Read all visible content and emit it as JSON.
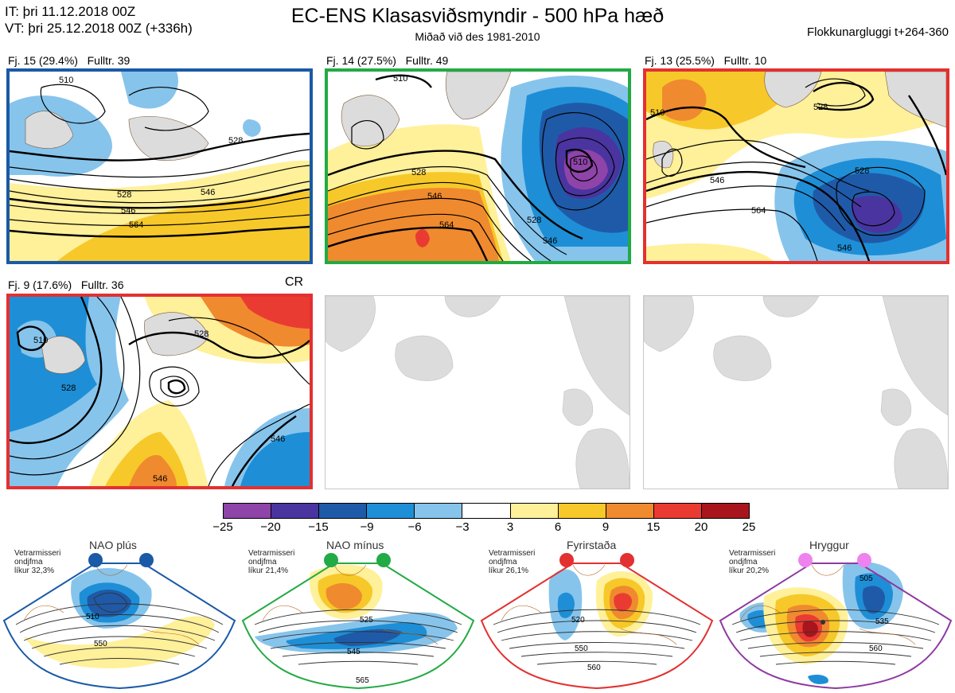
{
  "header": {
    "init_line": "IT: þri 11.12.2018 00Z",
    "valid_line": "VT: þri 25.12.2018 00Z  (+336h)",
    "title": "EC-ENS Klasasviðsmyndir - 500 hPa hæð",
    "subtitle": "Miðað við des 1981-2010",
    "window": "Flokkunargluggi t+264-360"
  },
  "panels": [
    {
      "label": "Fj. 15 (29.4%)",
      "rep": "Fulltr. 39",
      "border": "#1a5aa6",
      "contours": [
        "510",
        "528",
        "546",
        "564",
        "528",
        "546"
      ]
    },
    {
      "label": "Fj. 14 (27.5%)",
      "rep": "Fulltr. 49",
      "border": "#22aa44",
      "contours": [
        "510",
        "528",
        "546",
        "564",
        "510",
        "528",
        "546"
      ]
    },
    {
      "label": "Fj. 13 (25.5%)",
      "rep": "Fulltr. 10",
      "border": "#e33030",
      "contours": [
        "510",
        "528",
        "546",
        "564",
        "528",
        "546"
      ]
    },
    {
      "label": "Fj. 9 (17.6%)",
      "rep": "Fulltr. 36",
      "border": "#e33030",
      "tag": "CR",
      "contours": [
        "510",
        "528",
        "528",
        "546",
        "546"
      ]
    }
  ],
  "colorbar": {
    "ticks": [
      "−25",
      "−20",
      "−15",
      "−9",
      "−6",
      "−3",
      "3",
      "6",
      "9",
      "15",
      "20",
      "25"
    ],
    "colors": [
      "#8e44a8",
      "#4a34a0",
      "#1f5aa8",
      "#1e8fd6",
      "#86c4ec",
      "#ffffff",
      "#fff09a",
      "#f7c829",
      "#f08a2e",
      "#ea3b32",
      "#a8151c"
    ]
  },
  "regimes": [
    {
      "name": "NAO plús",
      "clim": [
        "Vetrarmisseri",
        "ondjfma",
        "líkur 32,3%"
      ],
      "dot": "#1a5aa6",
      "border": "#1a5aa6",
      "contours": [
        "510",
        "550"
      ]
    },
    {
      "name": "NAO mínus",
      "clim": [
        "Vetrarmisseri",
        "ondjfma",
        "líkur 21,4%"
      ],
      "dot": "#22aa44",
      "border": "#22aa44",
      "contours": [
        "525",
        "545",
        "565"
      ]
    },
    {
      "name": "Fyrirstaða",
      "clim": [
        "Vetrarmisseri",
        "ondjfma",
        "líkur 26,1%"
      ],
      "dot": "#e33030",
      "border": "#e33030",
      "contours": [
        "520",
        "550",
        "560"
      ]
    },
    {
      "name": "Hryggur",
      "clim": [
        "Vetrarmisseri",
        "ondjfma",
        "líkur 20,2%"
      ],
      "dot": "#ee82ee",
      "border": "#8e3aa0",
      "contours": [
        "505",
        "535",
        "560"
      ]
    }
  ]
}
